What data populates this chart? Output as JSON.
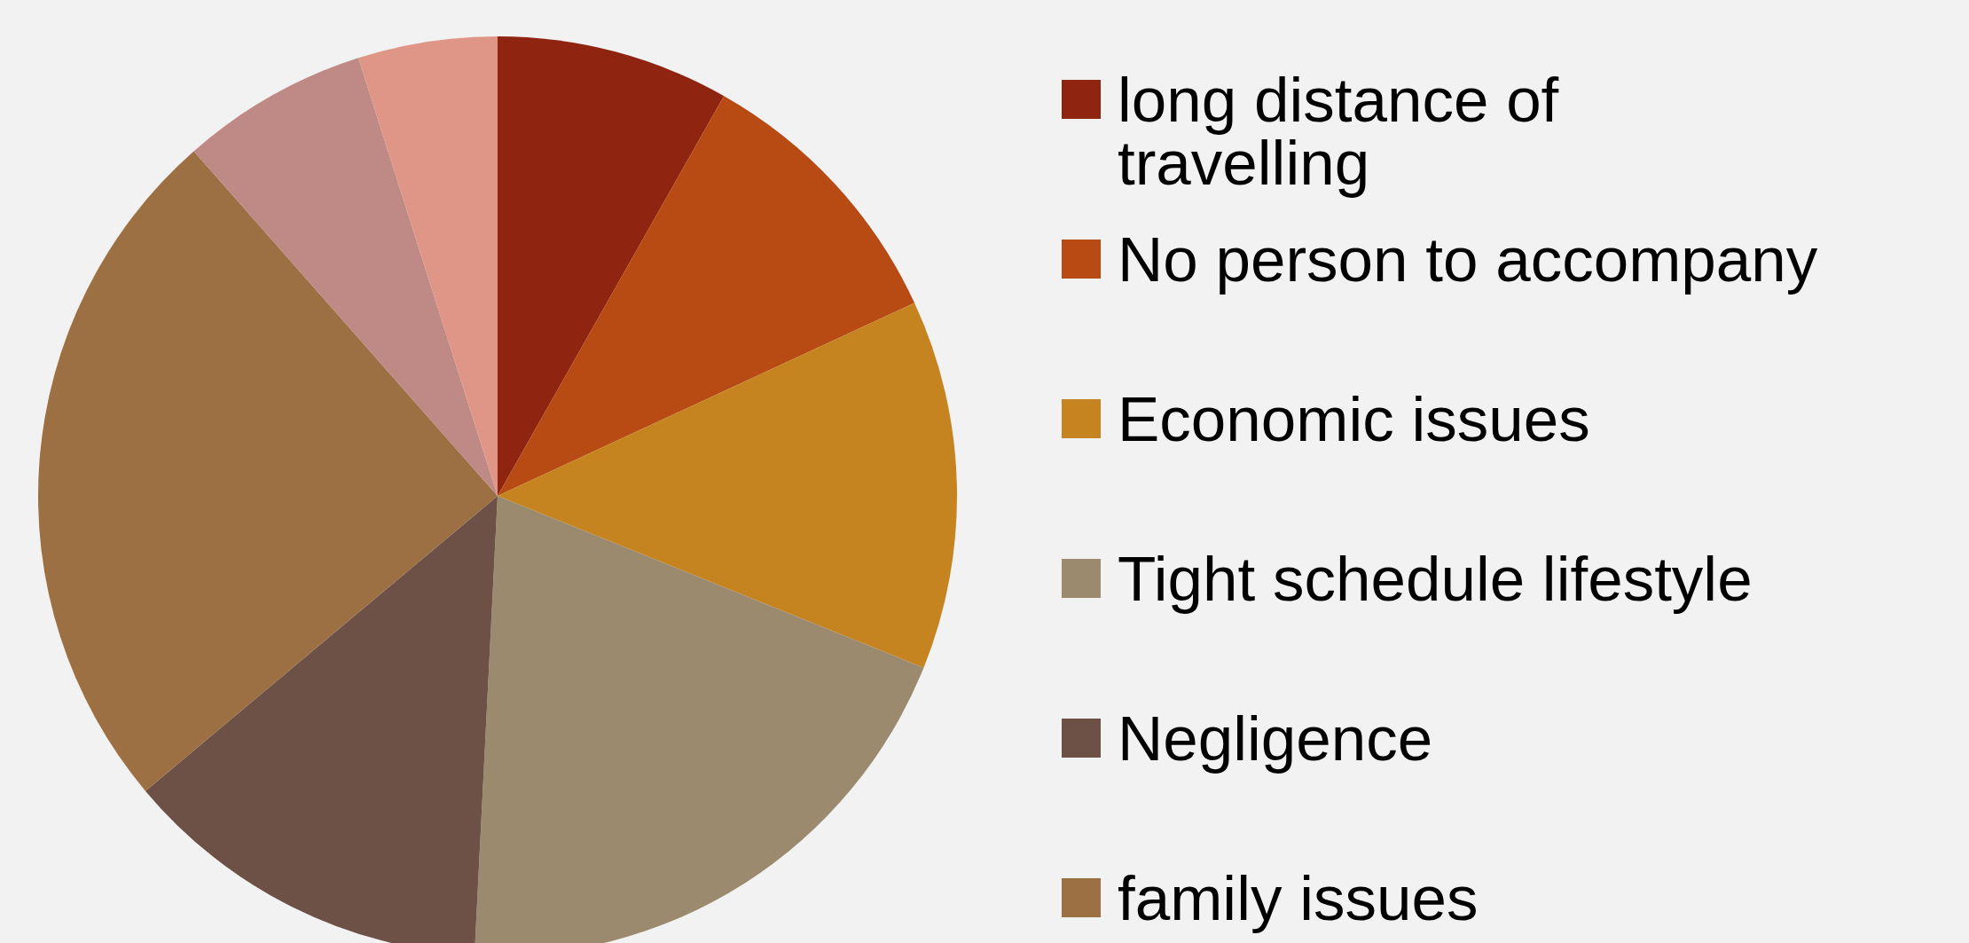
{
  "chart_data": {
    "type": "pie",
    "categories": [
      "long distance of travelling",
      "No person to accompany",
      "Economic issues",
      "Tight schedule lifestyle",
      "Negligence",
      "family issues",
      null,
      null
    ],
    "values": [
      8.2,
      9.9,
      13.0,
      19.7,
      13.1,
      24.6,
      6.6,
      4.9
    ],
    "colors": [
      "#8f2510",
      "#b84b14",
      "#c68421",
      "#9c8a6e",
      "#6d5147",
      "#9c7043",
      "#bf8985",
      "#df9686"
    ],
    "legend": "right"
  }
}
